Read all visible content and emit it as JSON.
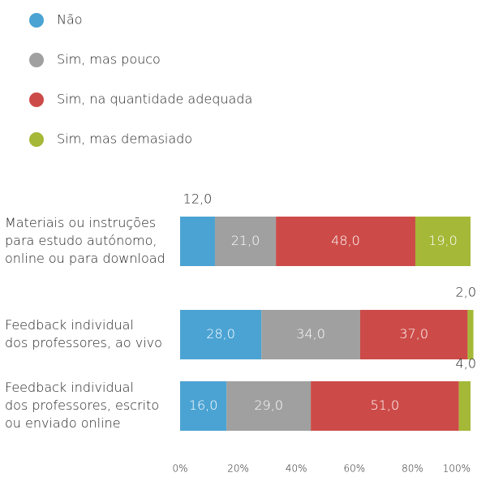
{
  "chart_data": {
    "type": "stacked-bar-horizontal",
    "categories": [
      [
        "Materiais ou instruções",
        "para estudo autónomo,",
        "online ou para download"
      ],
      [
        "Feedback individual",
        "dos professores, ao vivo"
      ],
      [
        "Feedback individual",
        "dos professores, escrito",
        "ou enviado online"
      ]
    ],
    "series": [
      {
        "name": "Não",
        "color": "#4ba3d3",
        "values": [
          12,
          28,
          16
        ],
        "value_labels": [
          "12,0",
          "28,0",
          "16,0"
        ]
      },
      {
        "name": "Sim, mas pouco",
        "color": "#a0a0a0",
        "values": [
          21,
          34,
          29
        ],
        "value_labels": [
          "21,0",
          "34,0",
          "29,0"
        ]
      },
      {
        "name": "Sim, na quantidade adequada",
        "color": "#cc4b48",
        "values": [
          48,
          37,
          51
        ],
        "value_labels": [
          "48,0",
          "37,0",
          "51,0"
        ]
      },
      {
        "name": "Sim, mas demasiado",
        "color": "#a5b837",
        "values": [
          19,
          2,
          4
        ],
        "value_labels": [
          "19,0",
          "2,0",
          "4,0"
        ]
      }
    ],
    "xlim": [
      0,
      100
    ],
    "xticks": [
      {
        "value": 0,
        "label": "0%"
      },
      {
        "value": 20,
        "label": "20%"
      },
      {
        "value": 40,
        "label": "40%"
      },
      {
        "value": 60,
        "label": "60%"
      },
      {
        "value": 80,
        "label": "80%"
      },
      {
        "value": 100,
        "label": "100%"
      }
    ],
    "legend": "top-left"
  }
}
